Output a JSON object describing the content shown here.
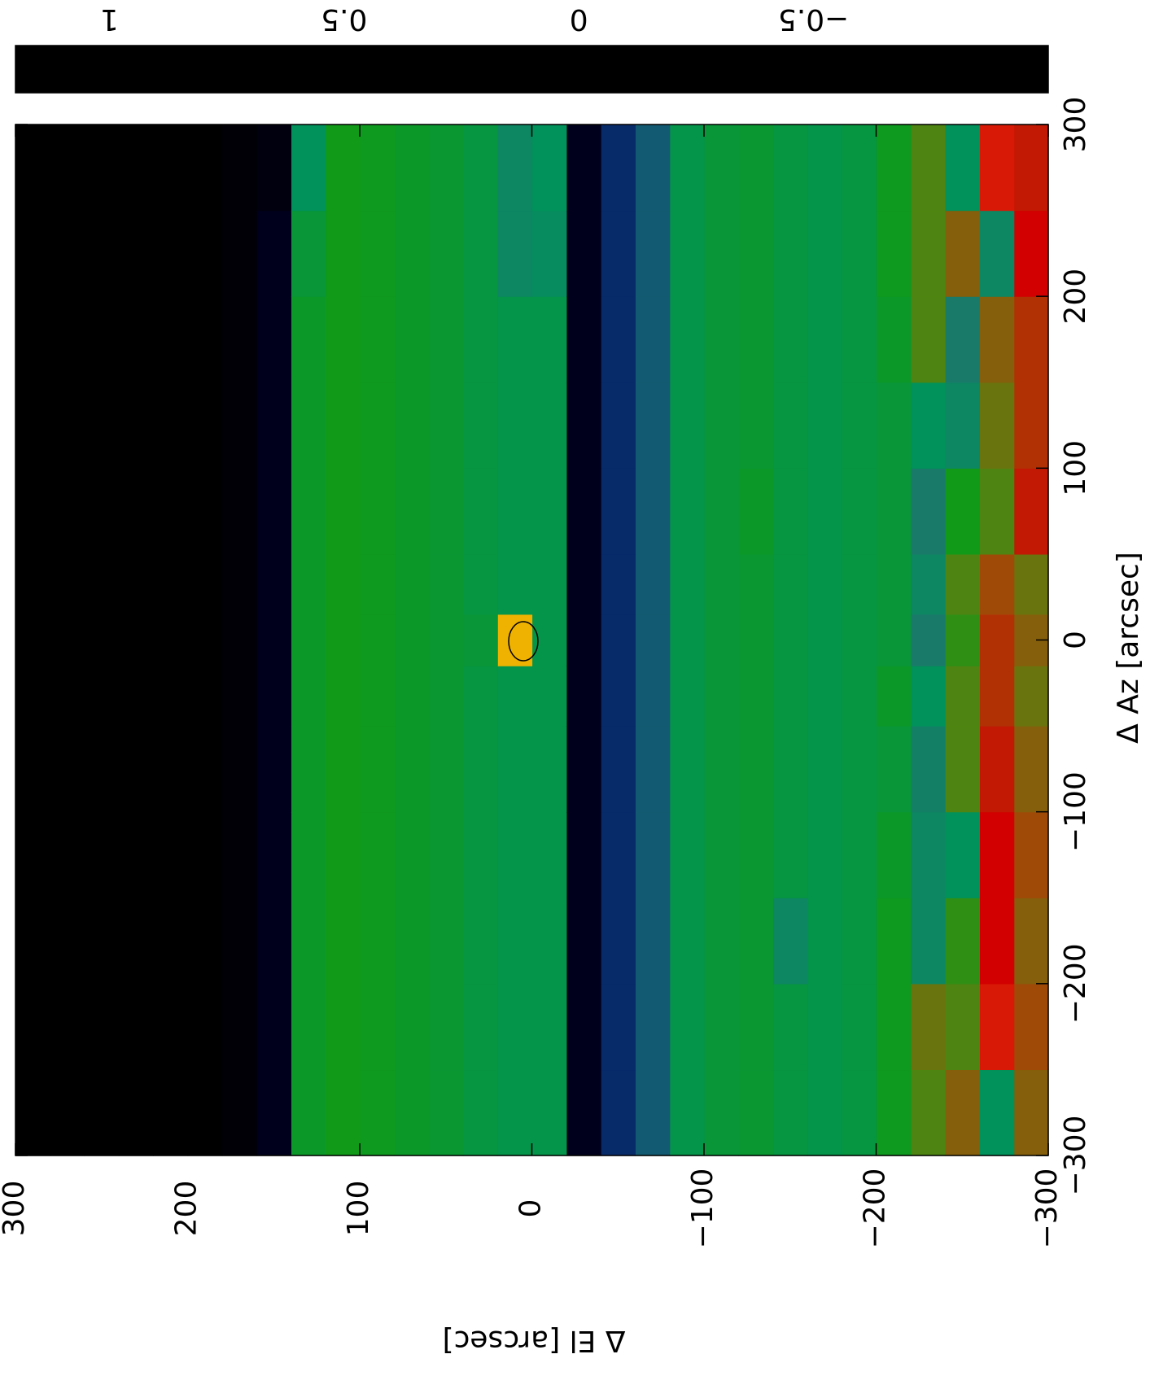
{
  "chart_data": {
    "type": "heatmap",
    "xlabel": "Δ Az [arcsec]",
    "ylabel": "Δ El [arcsec]",
    "xlim": [
      -300,
      300
    ],
    "ylim": [
      -300,
      300
    ],
    "xticks": [
      {
        "value": -300,
        "label": "−300"
      },
      {
        "value": -200,
        "label": "−200"
      },
      {
        "value": -100,
        "label": "−100"
      },
      0,
      100,
      200,
      300
    ],
    "yticks": [
      {
        "value": -300,
        "label": "−300"
      },
      {
        "value": -200,
        "label": "−200"
      },
      {
        "value": -100,
        "label": "−100"
      },
      0,
      100,
      200,
      300
    ],
    "x_edges": [
      -300,
      -250,
      -200,
      -150,
      -100,
      -50,
      -15,
      15,
      50,
      100,
      150,
      200,
      250,
      300
    ],
    "y_edges": [
      -300,
      -280,
      -260,
      -240,
      -220,
      -200,
      -180,
      -160,
      -140,
      -120,
      -100,
      -80,
      -60,
      -40,
      -20,
      0,
      20,
      40,
      60,
      80,
      100,
      120,
      140,
      160,
      180,
      200,
      220,
      240,
      260,
      280,
      300
    ],
    "values": [
      [
        0.2,
        -0.2,
        0.2,
        0.1,
        -0.02,
        -0.12,
        -0.15,
        -0.12,
        -0.08,
        -0.1,
        -0.15,
        -0.5,
        -0.65,
        -0.9,
        -0.15,
        -0.15,
        -0.12,
        -0.08,
        -0.05,
        -0.02,
        0,
        -0.05,
        -0.9,
        -0.98,
        -1,
        -1,
        -1,
        -1,
        -1,
        -1
      ],
      [
        0.25,
        0.45,
        0.1,
        0.15,
        -0.02,
        -0.12,
        -0.15,
        -0.12,
        -0.08,
        -0.1,
        -0.15,
        -0.5,
        -0.65,
        -0.9,
        -0.15,
        -0.15,
        -0.12,
        -0.08,
        -0.05,
        -0.02,
        0,
        -0.05,
        -0.9,
        -0.98,
        -1,
        -1,
        -1,
        -1,
        -1,
        -1
      ],
      [
        0.2,
        0.4,
        0.05,
        -0.3,
        -0.02,
        -0.12,
        -0.15,
        -0.3,
        -0.08,
        -0.1,
        -0.15,
        -0.5,
        -0.65,
        -0.9,
        -0.15,
        -0.15,
        -0.12,
        -0.08,
        -0.05,
        -0.02,
        0,
        -0.05,
        -0.9,
        -0.98,
        -1,
        -1,
        -1,
        -1,
        -1,
        -1
      ],
      [
        0.25,
        0.4,
        -0.2,
        -0.3,
        -0.05,
        -0.12,
        -0.15,
        -0.12,
        -0.08,
        -0.1,
        -0.15,
        -0.5,
        -0.65,
        -0.9,
        -0.15,
        -0.15,
        -0.12,
        -0.08,
        -0.05,
        -0.02,
        0,
        -0.05,
        -0.9,
        -0.98,
        -1,
        -1,
        -1,
        -1,
        -1,
        -1
      ],
      [
        0.2,
        0.35,
        0.1,
        -0.35,
        -0.1,
        -0.12,
        -0.15,
        -0.12,
        -0.08,
        -0.1,
        -0.15,
        -0.5,
        -0.65,
        -0.9,
        -0.15,
        -0.15,
        -0.12,
        -0.08,
        -0.05,
        -0.02,
        0,
        -0.05,
        -0.9,
        -0.98,
        -1,
        -1,
        -1,
        -1,
        -1,
        -1
      ],
      [
        0.15,
        0.3,
        0.1,
        -0.2,
        -0.05,
        -0.12,
        -0.15,
        -0.12,
        -0.08,
        -0.1,
        -0.15,
        -0.5,
        -0.65,
        -0.9,
        -0.15,
        -0.15,
        -0.12,
        -0.08,
        -0.05,
        -0.02,
        0,
        -0.05,
        -0.9,
        -0.98,
        -1,
        -1,
        -1,
        -1,
        -1,
        -1
      ],
      [
        0.2,
        0.3,
        0.05,
        -0.4,
        -0.1,
        -0.12,
        -0.15,
        -0.12,
        -0.08,
        -0.1,
        -0.15,
        -0.5,
        -0.65,
        -0.9,
        -0.15,
        0.95,
        -0.1,
        -0.08,
        -0.05,
        -0.02,
        0,
        -0.05,
        -0.9,
        -0.98,
        -1,
        -1,
        -1,
        -1,
        -1,
        -1
      ],
      [
        0.15,
        0.25,
        0.1,
        -0.3,
        -0.1,
        -0.12,
        -0.15,
        -0.12,
        -0.08,
        -0.1,
        -0.15,
        -0.5,
        -0.65,
        -0.9,
        -0.15,
        -0.15,
        -0.12,
        -0.08,
        -0.05,
        -0.02,
        0,
        -0.05,
        -0.9,
        -0.98,
        -1,
        -1,
        -1,
        -1,
        -1,
        -1
      ],
      [
        0.35,
        0.1,
        0.0,
        -0.4,
        -0.1,
        -0.12,
        -0.15,
        -0.12,
        -0.05,
        -0.1,
        -0.15,
        -0.5,
        -0.65,
        -0.9,
        -0.15,
        -0.15,
        -0.12,
        -0.08,
        -0.05,
        -0.02,
        0,
        -0.05,
        -0.9,
        -0.98,
        -1,
        -1,
        -1,
        -1,
        -1,
        -1
      ],
      [
        0.3,
        0.15,
        -0.3,
        -0.2,
        -0.1,
        -0.12,
        -0.15,
        -0.12,
        -0.08,
        -0.1,
        -0.15,
        -0.5,
        -0.65,
        -0.9,
        -0.15,
        -0.15,
        -0.12,
        -0.08,
        -0.05,
        -0.02,
        0,
        -0.05,
        -0.9,
        -0.98,
        -1,
        -1,
        -1,
        -1,
        -1,
        -1
      ],
      [
        0.3,
        0.2,
        -0.4,
        0.1,
        -0.05,
        -0.12,
        -0.15,
        -0.12,
        -0.08,
        -0.1,
        -0.15,
        -0.5,
        -0.65,
        -0.9,
        -0.15,
        -0.15,
        -0.12,
        -0.08,
        -0.05,
        -0.02,
        0,
        -0.05,
        -0.9,
        -0.98,
        -1,
        -1,
        -1,
        -1,
        -1,
        -1
      ],
      [
        0.4,
        -0.3,
        0.2,
        0.1,
        -0.02,
        -0.12,
        -0.15,
        -0.12,
        -0.08,
        -0.1,
        -0.15,
        -0.5,
        -0.65,
        -0.9,
        -0.25,
        -0.3,
        -0.12,
        -0.08,
        -0.05,
        -0.02,
        0,
        -0.1,
        -0.9,
        -0.98,
        -1,
        -1,
        -1,
        -1,
        -1,
        -1
      ],
      [
        0.35,
        0.45,
        -0.2,
        0.1,
        -0.02,
        -0.12,
        -0.15,
        -0.12,
        -0.08,
        -0.1,
        -0.15,
        -0.5,
        -0.65,
        -0.9,
        -0.2,
        -0.3,
        -0.12,
        -0.08,
        -0.05,
        -0.02,
        0,
        -0.2,
        -0.95,
        -0.98,
        -1,
        -1,
        -1,
        -1,
        -1,
        -1
      ]
    ],
    "clim": [
      -1,
      1.2
    ],
    "cbar_ticks": [
      1,
      0.5,
      0,
      {
        "value": -0.5,
        "label": "−0.5"
      }
    ],
    "colormap": [
      {
        "value": -1,
        "color": "#000000"
      },
      {
        "value": -0.8,
        "color": "#00003a"
      },
      {
        "value": -0.6,
        "color": "#0a3a78"
      },
      {
        "value": -0.4,
        "color": "#1a7a6a"
      },
      {
        "value": -0.2,
        "color": "#00925a"
      },
      {
        "value": 0,
        "color": "#109a18"
      },
      {
        "value": 0.12,
        "color": "#5a8010"
      },
      {
        "value": 0.25,
        "color": "#a04a08"
      },
      {
        "value": 0.4,
        "color": "#d20000"
      },
      {
        "value": 0.55,
        "color": "#e04a10"
      },
      {
        "value": 0.8,
        "color": "#ea8a00"
      },
      {
        "value": 1,
        "color": "#f0c000"
      },
      {
        "value": 1.2,
        "color": "#ffff00"
      }
    ]
  }
}
